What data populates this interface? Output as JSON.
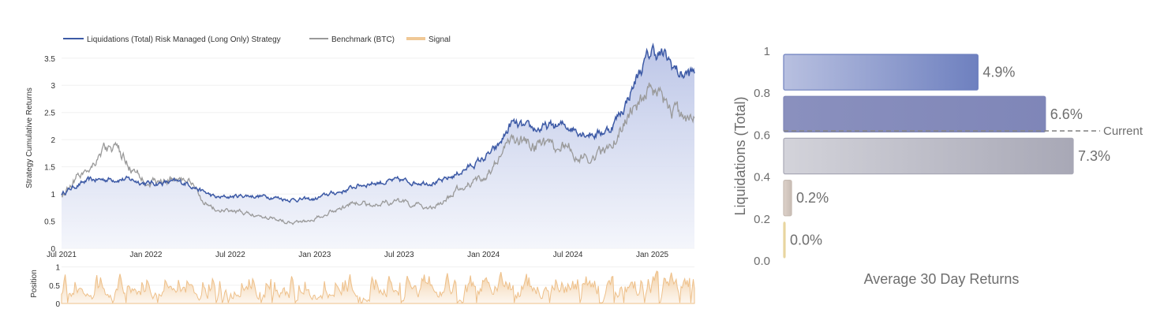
{
  "chart_data": [
    {
      "type": "line",
      "legend": {
        "placement": "top-left",
        "entries": [
          {
            "name": "Liquidations (Total) Risk Managed (Long Only) Strategy",
            "color": "#3d5aa6"
          },
          {
            "name": "Benchmark (BTC)",
            "color": "#9a9a9a"
          },
          {
            "name": "Signal",
            "color": "#f0c896"
          }
        ]
      },
      "ylabel": "Strategy Cumulative Returns",
      "y_ticks": [
        "0",
        "0.5",
        "1",
        "1.5",
        "2",
        "2.5",
        "3",
        "3.5"
      ],
      "ylim": [
        0,
        3.7
      ],
      "x_ticks": [
        "Jul 2021",
        "Jan 2022",
        "Jul 2022",
        "Jan 2023",
        "Jul 2023",
        "Jan 2024",
        "Jul 2024",
        "Jan 2025"
      ],
      "x_range": [
        "Jul 2021",
        "Apr 2025"
      ],
      "series": [
        {
          "name": "Liquidations (Total) Risk Managed (Long Only) Strategy",
          "color": "#3d5aa6",
          "fill": "gradient-to-white",
          "x": [
            "2021-07",
            "2021-08",
            "2021-09",
            "2021-10",
            "2021-11",
            "2021-12",
            "2022-01",
            "2022-02",
            "2022-03",
            "2022-04",
            "2022-05",
            "2022-06",
            "2022-07",
            "2022-08",
            "2022-09",
            "2022-10",
            "2022-11",
            "2022-12",
            "2023-01",
            "2023-02",
            "2023-03",
            "2023-04",
            "2023-05",
            "2023-06",
            "2023-07",
            "2023-08",
            "2023-09",
            "2023-10",
            "2023-11",
            "2023-12",
            "2024-01",
            "2024-02",
            "2024-03",
            "2024-04",
            "2024-05",
            "2024-06",
            "2024-07",
            "2024-08",
            "2024-09",
            "2024-10",
            "2024-11",
            "2024-12",
            "2025-01",
            "2025-02",
            "2025-03",
            "2025-04"
          ],
          "y": [
            1.0,
            1.15,
            1.25,
            1.27,
            1.28,
            1.26,
            1.2,
            1.2,
            1.22,
            1.2,
            1.05,
            0.93,
            0.95,
            0.97,
            0.96,
            0.95,
            0.9,
            0.9,
            0.9,
            1.0,
            1.05,
            1.15,
            1.2,
            1.22,
            1.25,
            1.22,
            1.22,
            1.22,
            1.35,
            1.5,
            1.65,
            1.85,
            2.3,
            2.2,
            2.2,
            2.25,
            2.25,
            2.15,
            2.1,
            2.2,
            2.6,
            3.2,
            3.65,
            3.5,
            3.2,
            3.22
          ]
        },
        {
          "name": "Benchmark (BTC)",
          "color": "#9a9a9a",
          "x": [
            "2021-07",
            "2021-08",
            "2021-09",
            "2021-10",
            "2021-11",
            "2021-12",
            "2022-01",
            "2022-02",
            "2022-03",
            "2022-04",
            "2022-05",
            "2022-06",
            "2022-07",
            "2022-08",
            "2022-09",
            "2022-10",
            "2022-11",
            "2022-12",
            "2023-01",
            "2023-02",
            "2023-03",
            "2023-04",
            "2023-05",
            "2023-06",
            "2023-07",
            "2023-08",
            "2023-09",
            "2023-10",
            "2023-11",
            "2023-12",
            "2024-01",
            "2024-02",
            "2024-03",
            "2024-04",
            "2024-05",
            "2024-06",
            "2024-07",
            "2024-08",
            "2024-09",
            "2024-10",
            "2024-11",
            "2024-12",
            "2025-01",
            "2025-02",
            "2025-03",
            "2025-04"
          ],
          "y": [
            0.95,
            1.3,
            1.5,
            1.85,
            1.8,
            1.45,
            1.25,
            1.2,
            1.3,
            1.25,
            0.9,
            0.7,
            0.68,
            0.65,
            0.6,
            0.57,
            0.5,
            0.48,
            0.55,
            0.68,
            0.75,
            0.85,
            0.8,
            0.85,
            0.85,
            0.8,
            0.75,
            0.8,
            1.05,
            1.2,
            1.3,
            1.6,
            2.05,
            1.95,
            1.9,
            1.85,
            1.9,
            1.65,
            1.7,
            1.85,
            2.3,
            2.7,
            2.85,
            2.6,
            2.45,
            2.4
          ]
        }
      ]
    },
    {
      "type": "area",
      "ylabel": "Position",
      "y_ticks": [
        "0",
        "0.5",
        "1"
      ],
      "ylim": [
        0,
        1.1
      ],
      "series": [
        {
          "name": "Signal",
          "color": "#f0c896",
          "fill": "gradient-to-white"
        }
      ]
    },
    {
      "type": "bar",
      "orientation": "horizontal",
      "ylabel": "Liquidations (Total)",
      "xlabel": "Average 30 Day Returns",
      "y_ticks": [
        "0.0",
        "0.2",
        "0.4",
        "0.6",
        "0.8",
        "1"
      ],
      "ylim": [
        0,
        1
      ],
      "bins": [
        {
          "y_from": 0.8,
          "y_to": 1.0,
          "value": 4.9,
          "label": "4.9%",
          "color_from": "#b8c0e0",
          "color_to": "#6e80bf"
        },
        {
          "y_from": 0.6,
          "y_to": 0.8,
          "value": 6.6,
          "label": "6.6%",
          "color_from": "#8a90be",
          "color_to": "#7f86b8"
        },
        {
          "y_from": 0.4,
          "y_to": 0.6,
          "value": 7.3,
          "label": "7.3%",
          "color_from": "#d3d3da",
          "color_to": "#a8a8b6"
        },
        {
          "y_from": 0.2,
          "y_to": 0.4,
          "value": 0.2,
          "label": "0.2%",
          "color_from": "#ddd2ca",
          "color_to": "#c8bcb4"
        },
        {
          "y_from": 0.0,
          "y_to": 0.2,
          "value": 0.0,
          "label": "0.0%",
          "color_from": "#e8d6a0",
          "color_to": "#e8d6a0"
        }
      ],
      "xlim": [
        0,
        7.3
      ],
      "reference_line": {
        "y": 0.62,
        "label": "Current",
        "style": "dashed",
        "color": "#888888"
      }
    }
  ]
}
